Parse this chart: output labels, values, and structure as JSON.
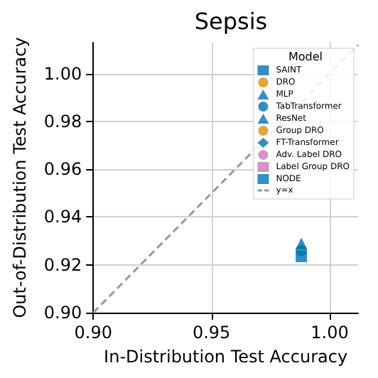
{
  "chart_data": {
    "type": "scatter",
    "title": "Sepsis",
    "xlabel": "In-Distribution Test Accuracy",
    "ylabel": "Out-of-Distribution Test Accuracy",
    "legend_title": "Model",
    "xlim": [
      0.9,
      1.012
    ],
    "ylim": [
      0.9,
      1.013
    ],
    "xticks": [
      {
        "value": 0.9,
        "label": "0.90"
      },
      {
        "value": 0.95,
        "label": "0.95"
      },
      {
        "value": 1.0,
        "label": "1.00"
      }
    ],
    "yticks": [
      {
        "value": 0.9,
        "label": "0.90"
      },
      {
        "value": 0.92,
        "label": "0.92"
      },
      {
        "value": 0.94,
        "label": "0.94"
      },
      {
        "value": 0.96,
        "label": "0.96"
      },
      {
        "value": 0.98,
        "label": "0.98"
      },
      {
        "value": 1.0,
        "label": "1.00"
      }
    ],
    "grid": true,
    "legend": "top right",
    "series": [
      {
        "name": "SAINT",
        "color": "#0173b2",
        "marker": "square",
        "x": [
          null
        ],
        "values": [
          null
        ]
      },
      {
        "name": "DRO",
        "color": "#de8f05",
        "marker": "circle",
        "x": [
          null
        ],
        "values": [
          null
        ]
      },
      {
        "name": "MLP",
        "color": "#0173b2",
        "marker": "triangle",
        "x": [
          0.988
        ],
        "values": [
          0.929
        ]
      },
      {
        "name": "TabTransformer",
        "color": "#0173b2",
        "marker": "circle",
        "x": [
          0.988
        ],
        "values": [
          0.926
        ]
      },
      {
        "name": "ResNet",
        "color": "#0173b2",
        "marker": "triangle",
        "x": [
          null
        ],
        "values": [
          null
        ]
      },
      {
        "name": "Group DRO",
        "color": "#de8f05",
        "marker": "circle",
        "x": [
          null
        ],
        "values": [
          null
        ]
      },
      {
        "name": "FT-Transformer",
        "color": "#0173b2",
        "marker": "diamond",
        "x": [
          null
        ],
        "values": [
          null
        ]
      },
      {
        "name": "Adv. Label DRO",
        "color": "#cc78bc",
        "marker": "circle",
        "x": [
          null
        ],
        "values": [
          null
        ]
      },
      {
        "name": "Label Group DRO",
        "color": "#cc78bc",
        "marker": "square",
        "x": [
          null
        ],
        "values": [
          null
        ]
      },
      {
        "name": "NODE",
        "color": "#0173b2",
        "marker": "square",
        "x": [
          0.988
        ],
        "values": [
          0.9235
        ]
      },
      {
        "name": "y=x",
        "type": "line",
        "color": "#999999",
        "line_style": "dashed",
        "marker": "none",
        "x": [
          0.9,
          1.012
        ],
        "values": [
          0.9,
          1.012
        ]
      }
    ]
  }
}
